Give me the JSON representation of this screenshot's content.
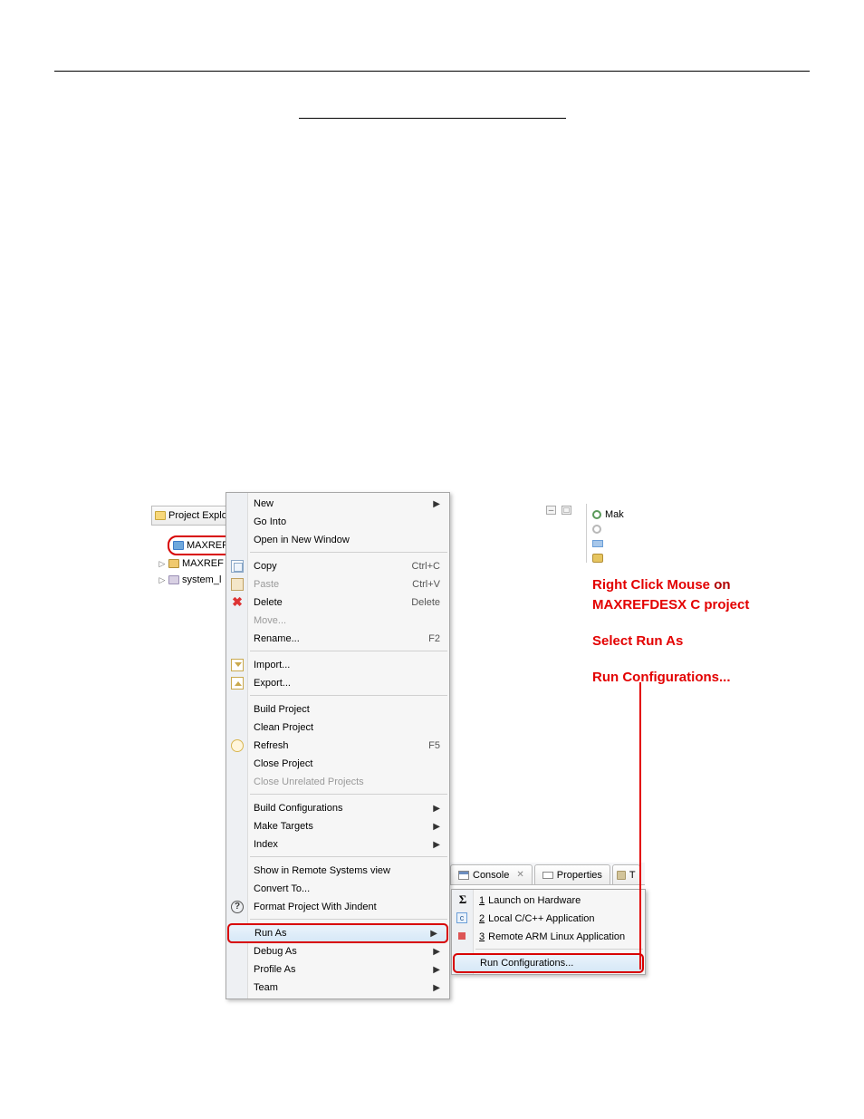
{
  "rules": {
    "top": true,
    "mid": true
  },
  "explorer": {
    "tab_label": "Project Explo",
    "items": [
      {
        "label": "MAXREF",
        "kind": "c",
        "selected": true
      },
      {
        "label": "MAXREF",
        "kind": "b",
        "selected": false
      },
      {
        "label": "system_l",
        "kind": "s",
        "selected": false
      }
    ]
  },
  "context_menu": {
    "sections": [
      [
        {
          "label": "New",
          "arrow": true
        },
        {
          "label": "Go Into"
        },
        {
          "label": "Open in New Window"
        }
      ],
      [
        {
          "label": "Copy",
          "shortcut": "Ctrl+C",
          "icon": "copy"
        },
        {
          "label": "Paste",
          "shortcut": "Ctrl+V",
          "icon": "paste",
          "disabled": true
        },
        {
          "label": "Delete",
          "shortcut": "Delete",
          "icon": "delete"
        },
        {
          "label": "Move...",
          "disabled": true
        },
        {
          "label": "Rename...",
          "shortcut": "F2"
        }
      ],
      [
        {
          "label": "Import...",
          "icon": "import"
        },
        {
          "label": "Export...",
          "icon": "export"
        }
      ],
      [
        {
          "label": "Build Project"
        },
        {
          "label": "Clean Project"
        },
        {
          "label": "Refresh",
          "shortcut": "F5",
          "icon": "refresh"
        },
        {
          "label": "Close Project"
        },
        {
          "label": "Close Unrelated Projects",
          "disabled": true
        }
      ],
      [
        {
          "label": "Build Configurations",
          "arrow": true
        },
        {
          "label": "Make Targets",
          "arrow": true
        },
        {
          "label": "Index",
          "arrow": true
        }
      ],
      [
        {
          "label": "Show in Remote Systems view"
        },
        {
          "label": "Convert To..."
        },
        {
          "label": "Format Project With Jindent",
          "icon": "help"
        }
      ],
      [
        {
          "label": "Run As",
          "arrow": true,
          "highlight": true,
          "boxed": true
        },
        {
          "label": "Debug As",
          "arrow": true
        },
        {
          "label": "Profile As",
          "arrow": true
        },
        {
          "label": "Team",
          "arrow": true
        }
      ]
    ]
  },
  "submenu": {
    "items": [
      {
        "num": "1",
        "label": "Launch on Hardware",
        "icon": "sigma"
      },
      {
        "num": "2",
        "label": "Local C/C++ Application",
        "icon": "c"
      },
      {
        "num": "3",
        "label": "Remote ARM Linux Application",
        "icon": "sq"
      }
    ],
    "footer": {
      "label": "Run Configurations...",
      "highlight": true,
      "boxed": true
    }
  },
  "console_tabs": [
    {
      "label": "Console",
      "icon": "console",
      "close": true
    },
    {
      "label": "Properties",
      "icon": "props"
    },
    {
      "label": "T",
      "icon": "term"
    }
  ],
  "mak_panel": {
    "label": "Mak",
    "rows": [
      "",
      "",
      ""
    ]
  },
  "instructions": {
    "line1a": "Right Click Mouse ",
    "line1b": "on",
    "line2": "MAXREFDESX C project",
    "line3": "Select Run As",
    "line4": "Run Configurations..."
  },
  "colors": {
    "highlight_border": "#d80000",
    "menu_bg": "#f6f6f6",
    "menu_border": "#a7a7a7",
    "hover_bg_top": "#eaf3fb",
    "hover_bg_bot": "#d6e8f7",
    "hover_border": "#9cc2e3",
    "red_text": "#e30000"
  }
}
